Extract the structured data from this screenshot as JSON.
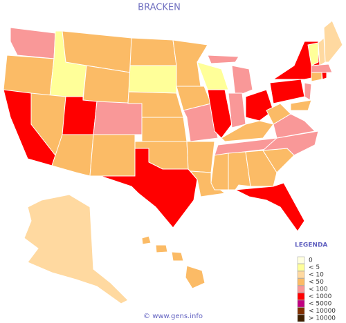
{
  "title": "BRACKEN",
  "legend": {
    "title": "LEGENDA",
    "items": [
      {
        "label": "0",
        "color": "#ffffe0"
      },
      {
        "label": "< 5",
        "color": "#ffff99"
      },
      {
        "label": "< 10",
        "color": "#ffd9a0"
      },
      {
        "label": "< 50",
        "color": "#fbbb66"
      },
      {
        "label": "< 100",
        "color": "#f99898"
      },
      {
        "label": "< 1000",
        "color": "#ff0000"
      },
      {
        "label": "< 5000",
        "color": "#c00080"
      },
      {
        "label": "< 10000",
        "color": "#803000"
      },
      {
        "label": "> 10000",
        "color": "#402000"
      }
    ]
  },
  "footer": "© www.gens.info"
}
